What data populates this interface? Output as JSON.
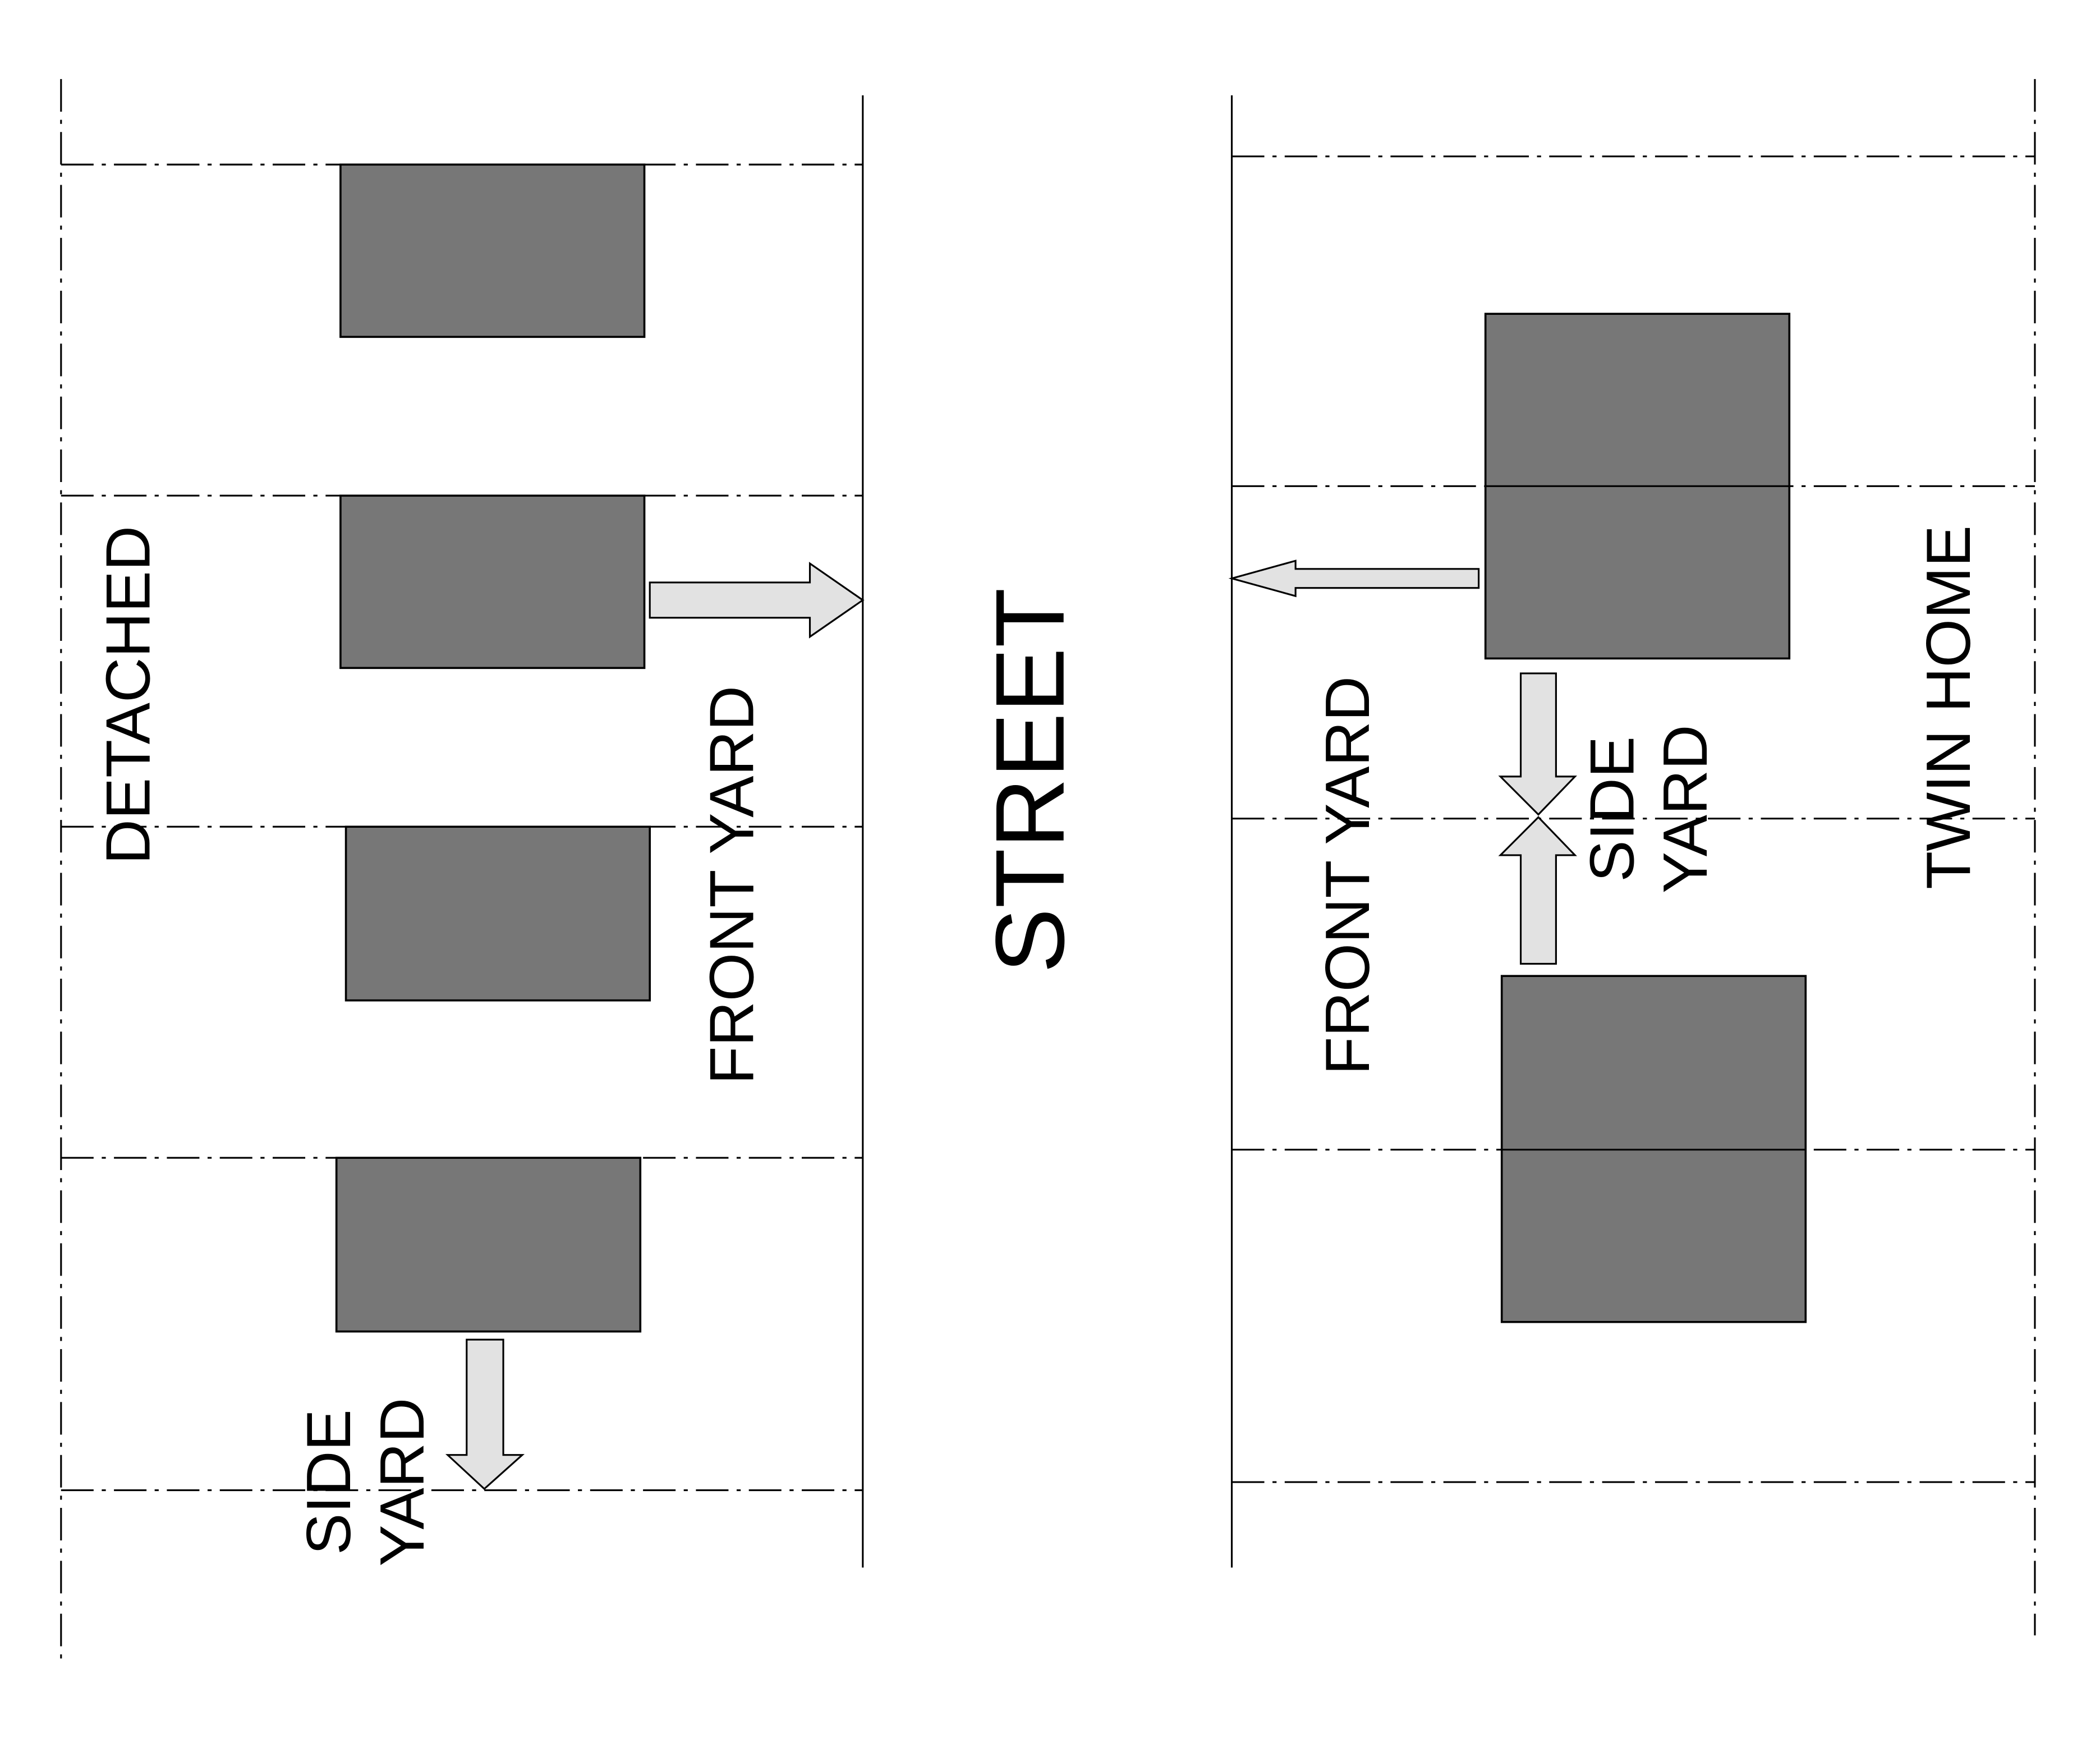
{
  "detached": {
    "label": "DETACHED",
    "front_yard": "FRONT YARD",
    "side_yard": [
      "SIDE",
      "YARD"
    ]
  },
  "street": "STREET",
  "twin_home": {
    "label": "TWIN HOME",
    "front_yard": "FRONT YARD",
    "side_yard": [
      "SIDE",
      "YARD"
    ]
  }
}
